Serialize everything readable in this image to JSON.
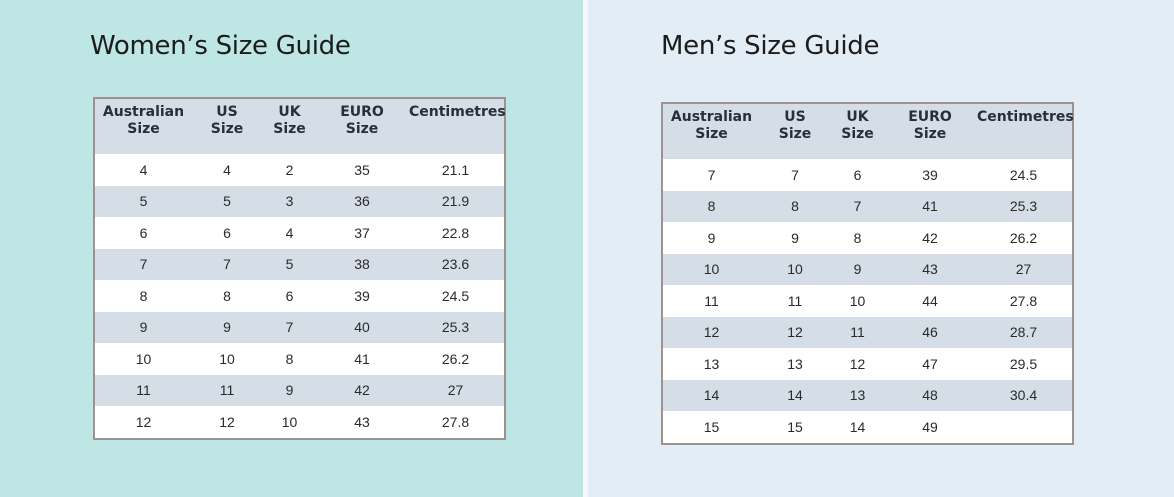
{
  "women": {
    "title": "Women’s Size Guide",
    "headers": [
      "Australian\nSize",
      "US\nSize",
      "UK\nSize",
      "EURO\nSize",
      "Centimetres"
    ],
    "rows": [
      [
        "4",
        "4",
        "2",
        "35",
        "21.1"
      ],
      [
        "5",
        "5",
        "3",
        "36",
        "21.9"
      ],
      [
        "6",
        "6",
        "4",
        "37",
        "22.8"
      ],
      [
        "7",
        "7",
        "5",
        "38",
        "23.6"
      ],
      [
        "8",
        "8",
        "6",
        "39",
        "24.5"
      ],
      [
        "9",
        "9",
        "7",
        "40",
        "25.3"
      ],
      [
        "10",
        "10",
        "8",
        "41",
        "26.2"
      ],
      [
        "11",
        "11",
        "9",
        "42",
        "27"
      ],
      [
        "12",
        "12",
        "10",
        "43",
        "27.8"
      ]
    ]
  },
  "men": {
    "title": "Men’s Size Guide",
    "headers": [
      "Australian\nSize",
      "US\nSize",
      "UK\nSize",
      "EURO\nSize",
      "Centimetres"
    ],
    "rows": [
      [
        "7",
        "7",
        "6",
        "39",
        "24.5"
      ],
      [
        "8",
        "8",
        "7",
        "41",
        "25.3"
      ],
      [
        "9",
        "9",
        "8",
        "42",
        "26.2"
      ],
      [
        "10",
        "10",
        "9",
        "43",
        "27"
      ],
      [
        "11",
        "11",
        "10",
        "44",
        "27.8"
      ],
      [
        "12",
        "12",
        "11",
        "46",
        "28.7"
      ],
      [
        "13",
        "13",
        "12",
        "47",
        "29.5"
      ],
      [
        "14",
        "14",
        "13",
        "48",
        "30.4"
      ],
      [
        "15",
        "15",
        "14",
        "49",
        ""
      ]
    ]
  },
  "colors": {
    "women_panel_bg": "#bde6e4",
    "men_panel_bg": "#e2edf5",
    "row_stripe": "#d5dde6",
    "table_border": "#9c928f"
  }
}
